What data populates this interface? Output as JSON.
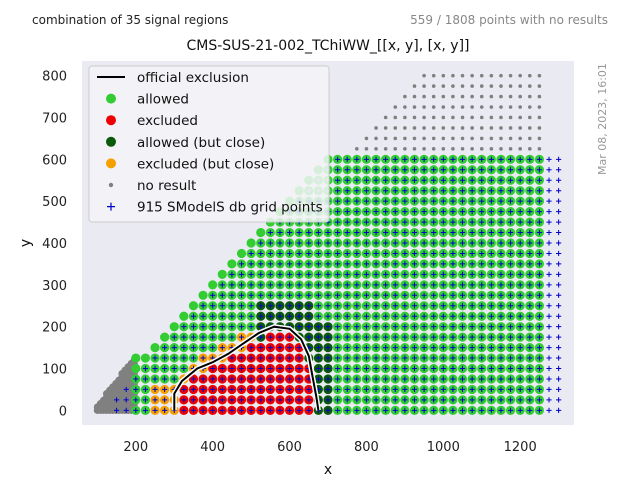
{
  "header": {
    "left_note": "combination of 35 signal regions",
    "right_note": "559 / 1808 points with no results",
    "timestamp": "Mar 08, 2023, 16:01"
  },
  "colors": {
    "plot_bg": "#eaeaf2",
    "allowed": "#33cc33",
    "excluded": "#ee0000",
    "allowed_close": "#0a5a0a",
    "excluded_close": "#f5a000",
    "no_result": "#808080",
    "db_grid": "#0000cc",
    "db_grid_faint": "#b79ef0",
    "exclusion_line": "#000000"
  },
  "chart_data": {
    "type": "scatter",
    "title": "CMS-SUS-21-002_TChiWW_[[x, y], [x, y]]",
    "xlabel": "x",
    "ylabel": "y",
    "xlim": [
      60,
      1340
    ],
    "ylim": [
      -35,
      835
    ],
    "xticks": [
      200,
      400,
      600,
      800,
      1000,
      1200
    ],
    "yticks": [
      0,
      100,
      200,
      300,
      400,
      500,
      600,
      700,
      800
    ],
    "grid": false,
    "legend_position": "top-left",
    "legend": [
      {
        "label": "official exclusion",
        "marker": "line",
        "color": "#000000"
      },
      {
        "label": "allowed",
        "marker": "circle",
        "color": "#33cc33"
      },
      {
        "label": "excluded",
        "marker": "circle",
        "color": "#ee0000"
      },
      {
        "label": "allowed (but close)",
        "marker": "circle",
        "color": "#0a5a0a"
      },
      {
        "label": "excluded (but close)",
        "marker": "circle",
        "color": "#f5a000"
      },
      {
        "label": "no result",
        "marker": "dot",
        "color": "#808080"
      },
      {
        "label": "915 SModelS db grid points",
        "marker": "plus",
        "color": "#0000cc"
      }
    ],
    "regions": {
      "grid_x_range": [
        200,
        1250
      ],
      "grid_step": 25,
      "upper_boundary_y_at_x": [
        [
          200,
          125
        ],
        [
          700,
          600
        ],
        [
          1250,
          600
        ]
      ],
      "no_result_fringe": {
        "x_range": [
          100,
          200
        ],
        "y_range": [
          0,
          125
        ]
      },
      "no_result_upper": {
        "x_range": [
          725,
          1250
        ],
        "upper_y_range": [
          600,
          800
        ]
      },
      "db_grid_x_range": [
        150,
        1300
      ],
      "excluded_core": {
        "x_range": [
          300,
          650
        ],
        "y_max_at_center": 190
      },
      "excluded_close_band": {
        "x_range": [
          250,
          700
        ],
        "y_max": 220
      },
      "allowed_close_band": {
        "x_range": [
          525,
          700
        ],
        "y_max": 250
      }
    },
    "official_exclusion": [
      [
        300,
        0
      ],
      [
        300,
        40
      ],
      [
        320,
        70
      ],
      [
        360,
        100
      ],
      [
        400,
        115
      ],
      [
        440,
        135
      ],
      [
        480,
        160
      ],
      [
        520,
        185
      ],
      [
        560,
        200
      ],
      [
        600,
        195
      ],
      [
        630,
        170
      ],
      [
        650,
        130
      ],
      [
        660,
        80
      ],
      [
        670,
        30
      ],
      [
        675,
        0
      ]
    ]
  }
}
